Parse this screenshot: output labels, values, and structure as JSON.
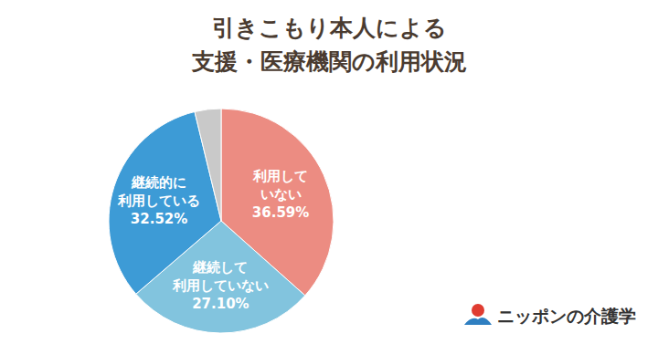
{
  "chart_data": {
    "type": "pie",
    "title": "引きこもり本人による\n支援・医療機関の利用状況",
    "categories": [
      "利用していない",
      "継続して利用していない",
      "継続的に利用している",
      null
    ],
    "values": [
      36.59,
      27.1,
      32.52,
      3.79
    ],
    "value_labels": [
      "36.59%",
      "27.10%",
      "32.52%",
      null
    ],
    "colors": [
      "#ec8c82",
      "#82c4de",
      "#3d9bd6",
      "#c9c9c9"
    ],
    "data_labels": true,
    "annotations": [
      "ニッポンの介護学"
    ]
  }
}
